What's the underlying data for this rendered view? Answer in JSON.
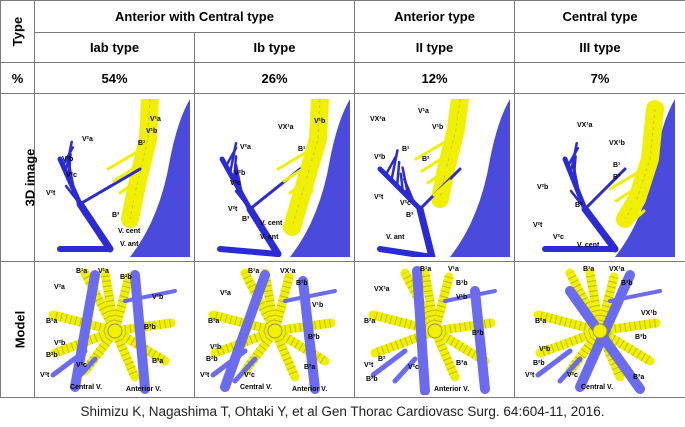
{
  "header": {
    "type_label": "Type",
    "pct_label": "%",
    "image_label": "3D image",
    "model_label": "Model",
    "groups": [
      "Anterior with Central type",
      "Anterior  type",
      "Central type"
    ]
  },
  "columns": [
    {
      "type": "Iab type",
      "percent": "54%"
    },
    {
      "type": "Ib type",
      "percent": "26%"
    },
    {
      "type": "II type",
      "percent": "12%"
    },
    {
      "type": "III type",
      "percent": "7%"
    }
  ],
  "labels": {
    "v2a": "V²a",
    "v2b": "V²b",
    "v2c": "V²c",
    "v2t": "V²t",
    "v1a": "V¹a",
    "v1b": "V¹b",
    "vx1a": "VX¹a",
    "vx1b": "VX¹b",
    "vx2a": "VX²a",
    "b1a": "B¹a",
    "b1b": "B¹b",
    "b2a": "B²a",
    "b2b": "B²b",
    "b3a": "B³a",
    "b3b": "B³b",
    "b1": "B¹",
    "b2": "B²",
    "b3": "B³",
    "vcent": "V. cent",
    "vant": "V. ant",
    "central": "Central V.",
    "anterior": "Anterior V."
  },
  "colors": {
    "vein": "#2a2ad6",
    "vein_light": "#6b6bf0",
    "bronchus": "#f0f000",
    "border": "#7a7a7a"
  },
  "citation": "Shimizu K, Nagashima T, Ohtaki Y, et al Gen Thorac Cardiovasc Surg. 64:604-11, 2016."
}
